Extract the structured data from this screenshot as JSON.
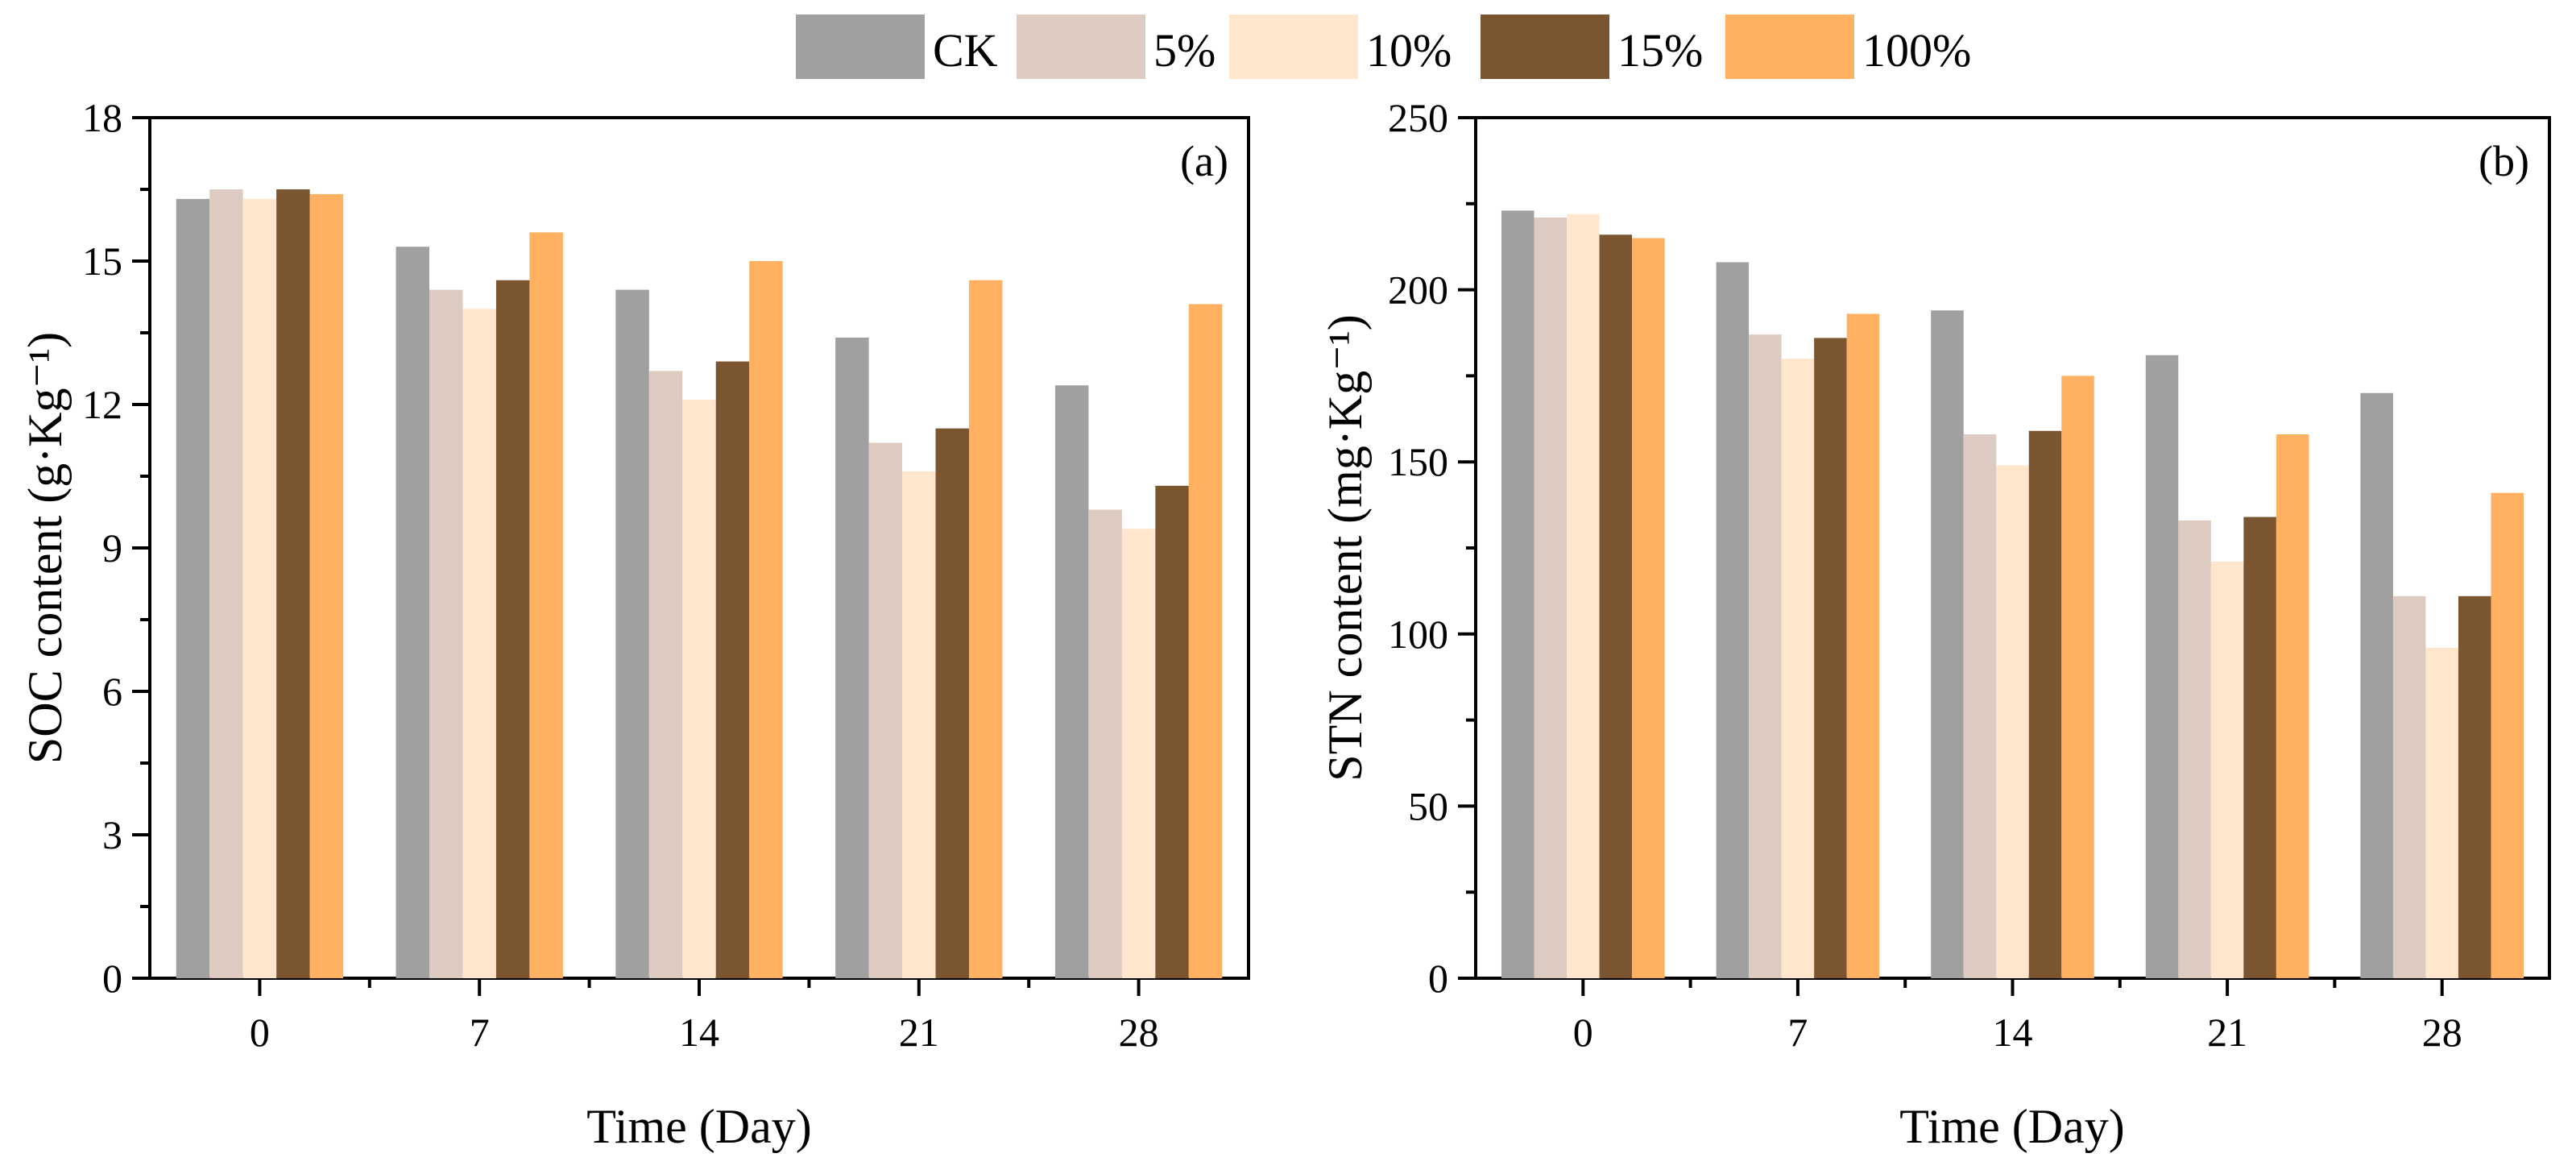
{
  "legend": {
    "items": [
      {
        "name": "CK",
        "color": "#a0a0a0"
      },
      {
        "name": "5%",
        "color": "#ddcbc2"
      },
      {
        "name": "10%",
        "color": "#ffe6cc"
      },
      {
        "name": "15%",
        "color": "#7a5530"
      },
      {
        "name": "100%",
        "color": "#ffb060"
      }
    ]
  },
  "chart_data": [
    {
      "type": "bar",
      "panel_label": "(a)",
      "title": "",
      "xlabel": "Time (Day)",
      "ylabel": "SOC content (g·Kg⁻¹)",
      "categories": [
        "0",
        "7",
        "14",
        "21",
        "28"
      ],
      "ylim": [
        0,
        18
      ],
      "yticks": [
        0,
        3,
        6,
        9,
        12,
        15,
        18
      ],
      "ytick_labels": [
        "0",
        "3",
        "6",
        "9",
        "12",
        "15",
        "18"
      ],
      "series": [
        {
          "name": "CK",
          "values": [
            16.3,
            15.3,
            14.4,
            13.4,
            12.4
          ]
        },
        {
          "name": "5%",
          "values": [
            16.5,
            14.4,
            12.7,
            11.2,
            9.8
          ]
        },
        {
          "name": "10%",
          "values": [
            16.3,
            14.0,
            12.1,
            10.6,
            9.4
          ]
        },
        {
          "name": "15%",
          "values": [
            16.5,
            14.6,
            12.9,
            11.5,
            10.3
          ]
        },
        {
          "name": "100%",
          "values": [
            16.4,
            15.6,
            15.0,
            14.6,
            14.1
          ]
        }
      ]
    },
    {
      "type": "bar",
      "panel_label": "(b)",
      "title": "",
      "xlabel": "Time (Day)",
      "ylabel": "STN  content (mg·Kg⁻¹)",
      "categories": [
        "0",
        "7",
        "14",
        "21",
        "28"
      ],
      "ylim": [
        0,
        250
      ],
      "yticks": [
        0,
        50,
        100,
        150,
        200,
        250
      ],
      "ytick_labels": [
        "0",
        "50",
        "100",
        "150",
        "200",
        "250"
      ],
      "series": [
        {
          "name": "CK",
          "values": [
            223,
            208,
            194,
            181,
            170
          ]
        },
        {
          "name": "5%",
          "values": [
            221,
            187,
            158,
            133,
            111
          ]
        },
        {
          "name": "10%",
          "values": [
            222,
            180,
            149,
            121,
            96
          ]
        },
        {
          "name": "15%",
          "values": [
            216,
            186,
            159,
            134,
            111
          ]
        },
        {
          "name": "100%",
          "values": [
            215,
            193,
            175,
            158,
            141
          ]
        }
      ]
    }
  ]
}
